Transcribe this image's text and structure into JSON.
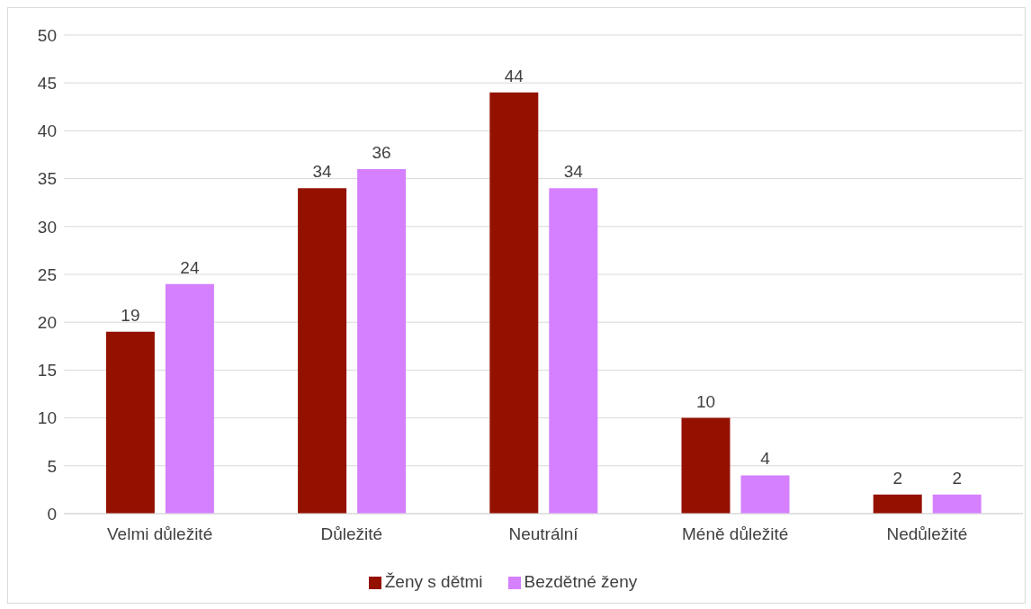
{
  "chart_data": {
    "type": "bar",
    "categories": [
      "Velmi důležité",
      "Důležité",
      "Neutrální",
      "Méně důležité",
      "Nedůležité"
    ],
    "series": [
      {
        "name": "Ženy s dětmi",
        "color": "#941100",
        "values": [
          19,
          34,
          44,
          10,
          2
        ]
      },
      {
        "name": "Bezdětné ženy",
        "color": "#d580ff",
        "values": [
          24,
          36,
          34,
          4,
          2
        ]
      }
    ],
    "ylim": [
      0,
      50
    ],
    "yticks": [
      0,
      5,
      10,
      15,
      20,
      25,
      30,
      35,
      40,
      45,
      50
    ],
    "grid": "y",
    "legend": "bottom",
    "data_labels": true
  }
}
